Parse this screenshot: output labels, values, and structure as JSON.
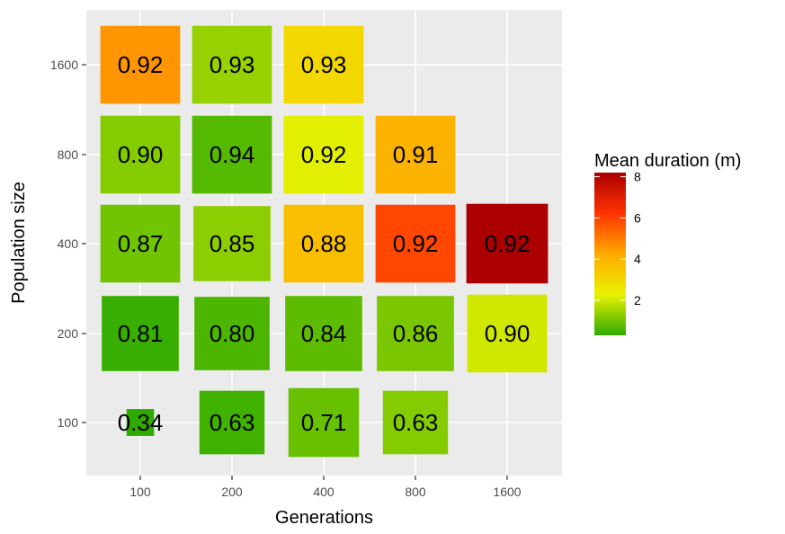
{
  "chart_data": {
    "type": "heatmap",
    "xlabel": "Generations",
    "ylabel": "Population size",
    "x_categories": [
      "100",
      "200",
      "400",
      "800",
      "1600"
    ],
    "y_categories": [
      "100",
      "200",
      "400",
      "800",
      "1600"
    ],
    "size_note": "tile size varies per cell",
    "cells": [
      {
        "x": "100",
        "y": "1600",
        "label": "0.92",
        "duration": 4.6,
        "size": 0.87
      },
      {
        "x": "200",
        "y": "1600",
        "label": "0.93",
        "duration": 1.4,
        "size": 0.87
      },
      {
        "x": "400",
        "y": "1600",
        "label": "0.93",
        "duration": 3.0,
        "size": 0.87
      },
      {
        "x": "100",
        "y": "800",
        "label": "0.90",
        "duration": 1.2,
        "size": 0.87
      },
      {
        "x": "200",
        "y": "800",
        "label": "0.94",
        "duration": 0.7,
        "size": 0.87
      },
      {
        "x": "400",
        "y": "800",
        "label": "0.92",
        "duration": 2.2,
        "size": 0.87
      },
      {
        "x": "800",
        "y": "800",
        "label": "0.91",
        "duration": 4.0,
        "size": 0.87
      },
      {
        "x": "100",
        "y": "400",
        "label": "0.87",
        "duration": 1.0,
        "size": 0.87
      },
      {
        "x": "200",
        "y": "400",
        "label": "0.85",
        "duration": 1.3,
        "size": 0.84
      },
      {
        "x": "400",
        "y": "400",
        "label": "0.88",
        "duration": 3.7,
        "size": 0.87
      },
      {
        "x": "800",
        "y": "400",
        "label": "0.92",
        "duration": 5.9,
        "size": 0.87
      },
      {
        "x": "1600",
        "y": "400",
        "label": "0.92",
        "duration": 8.2,
        "size": 0.89
      },
      {
        "x": "100",
        "y": "200",
        "label": "0.81",
        "duration": 0.4,
        "size": 0.84
      },
      {
        "x": "200",
        "y": "200",
        "label": "0.80",
        "duration": 0.6,
        "size": 0.82
      },
      {
        "x": "400",
        "y": "200",
        "label": "0.84",
        "duration": 0.8,
        "size": 0.84
      },
      {
        "x": "800",
        "y": "200",
        "label": "0.86",
        "duration": 1.1,
        "size": 0.84
      },
      {
        "x": "1600",
        "y": "200",
        "label": "0.90",
        "duration": 2.0,
        "size": 0.87
      },
      {
        "x": "100",
        "y": "100",
        "label": "0.34",
        "duration": 0.3,
        "size": 0.3
      },
      {
        "x": "200",
        "y": "100",
        "label": "0.63",
        "duration": 0.5,
        "size": 0.71
      },
      {
        "x": "400",
        "y": "100",
        "label": "0.71",
        "duration": 0.9,
        "size": 0.77
      },
      {
        "x": "800",
        "y": "100",
        "label": "0.63",
        "duration": 1.2,
        "size": 0.71
      }
    ],
    "legend": {
      "title": "Mean duration (m)",
      "range": [
        0.3,
        8.2
      ],
      "ticks": [
        2,
        4,
        6,
        8
      ],
      "colors": [
        "#2eaa00",
        "#eaf200",
        "#ffaa00",
        "#ff3300",
        "#aa0000"
      ],
      "placement": "right"
    },
    "grid": true,
    "panel_background": "#ebebeb",
    "grid_color": "#ffffff"
  }
}
